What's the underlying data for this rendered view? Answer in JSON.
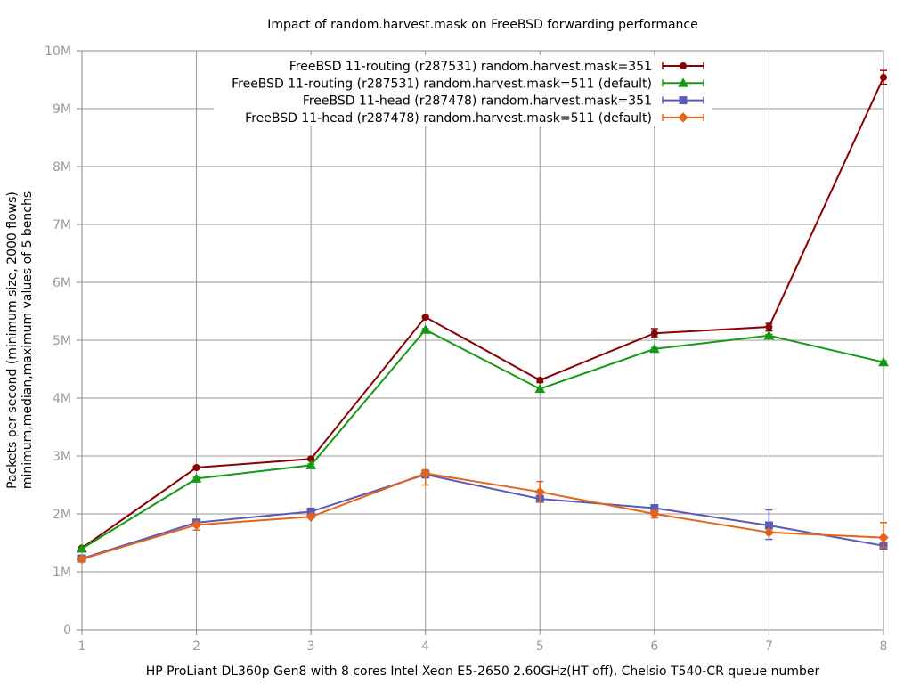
{
  "chart_data": {
    "type": "line",
    "title": "Impact of random.harvest.mask on FreeBSD forwarding performance",
    "xlabel": "HP ProLiant DL360p Gen8 with 8 cores Intel Xeon E5-2650 2.60GHz(HT off), Chelsio T540-CR queue number",
    "ylabel": [
      "Packets per second (minimum size, 2000 flows)",
      "minimum,median,maximum values of 5 benchs"
    ],
    "x": [
      1,
      2,
      3,
      4,
      5,
      6,
      7,
      8
    ],
    "ylim": [
      0,
      10000000
    ],
    "y_ticks": [
      {
        "value": 0,
        "label": "0"
      },
      {
        "value": 1000000,
        "label": "1M"
      },
      {
        "value": 2000000,
        "label": "2M"
      },
      {
        "value": 3000000,
        "label": "3M"
      },
      {
        "value": 4000000,
        "label": "4M"
      },
      {
        "value": 5000000,
        "label": "5M"
      },
      {
        "value": 6000000,
        "label": "6M"
      },
      {
        "value": 7000000,
        "label": "7M"
      },
      {
        "value": 8000000,
        "label": "8M"
      },
      {
        "value": 9000000,
        "label": "9M"
      },
      {
        "value": 10000000,
        "label": "10M"
      }
    ],
    "x_ticks": [
      "1",
      "2",
      "3",
      "4",
      "5",
      "6",
      "7",
      "8"
    ],
    "grid": true,
    "legend_position": "top-right",
    "series": [
      {
        "name": "FreeBSD 11-routing (r287531) random.harvest.mask=351",
        "color": "#8b0000",
        "marker": "circle",
        "values": [
          1410000,
          2800000,
          2950000,
          5400000,
          4310000,
          5120000,
          5230000,
          9540000
        ],
        "min": [
          1390000,
          2780000,
          2930000,
          5380000,
          4270000,
          5060000,
          5160000,
          9420000
        ],
        "max": [
          1430000,
          2820000,
          2970000,
          5420000,
          4340000,
          5200000,
          5290000,
          9660000
        ]
      },
      {
        "name": "FreeBSD 11-routing (r287531)  random.harvest.mask=511 (default)",
        "color": "#159a15",
        "marker": "triangle",
        "values": [
          1400000,
          2610000,
          2840000,
          5180000,
          4160000,
          4850000,
          5080000,
          4620000
        ],
        "min": [
          1380000,
          2590000,
          2820000,
          5160000,
          4140000,
          4830000,
          5060000,
          4600000
        ],
        "max": [
          1420000,
          2630000,
          2860000,
          5200000,
          4180000,
          4870000,
          5100000,
          4640000
        ]
      },
      {
        "name": "FreeBSD 11-head (r287478) random.harvest.mask=351",
        "color": "#5a5ab8",
        "marker": "square",
        "values": [
          1230000,
          1850000,
          2040000,
          2680000,
          2260000,
          2100000,
          1800000,
          1450000
        ],
        "min": [
          1210000,
          1830000,
          2020000,
          2630000,
          2240000,
          2060000,
          1560000,
          1430000
        ],
        "max": [
          1250000,
          1870000,
          2060000,
          2740000,
          2280000,
          2140000,
          2070000,
          1470000
        ]
      },
      {
        "name": "FreeBSD 11-head (r287478) random.harvest.mask=511 (default)",
        "color": "#e8631a",
        "marker": "diamond",
        "values": [
          1220000,
          1810000,
          1950000,
          2700000,
          2380000,
          2000000,
          1680000,
          1590000
        ],
        "min": [
          1200000,
          1720000,
          1930000,
          2500000,
          2200000,
          1930000,
          1660000,
          1420000
        ],
        "max": [
          1240000,
          1840000,
          1970000,
          2760000,
          2560000,
          2060000,
          1700000,
          1850000
        ]
      }
    ]
  }
}
